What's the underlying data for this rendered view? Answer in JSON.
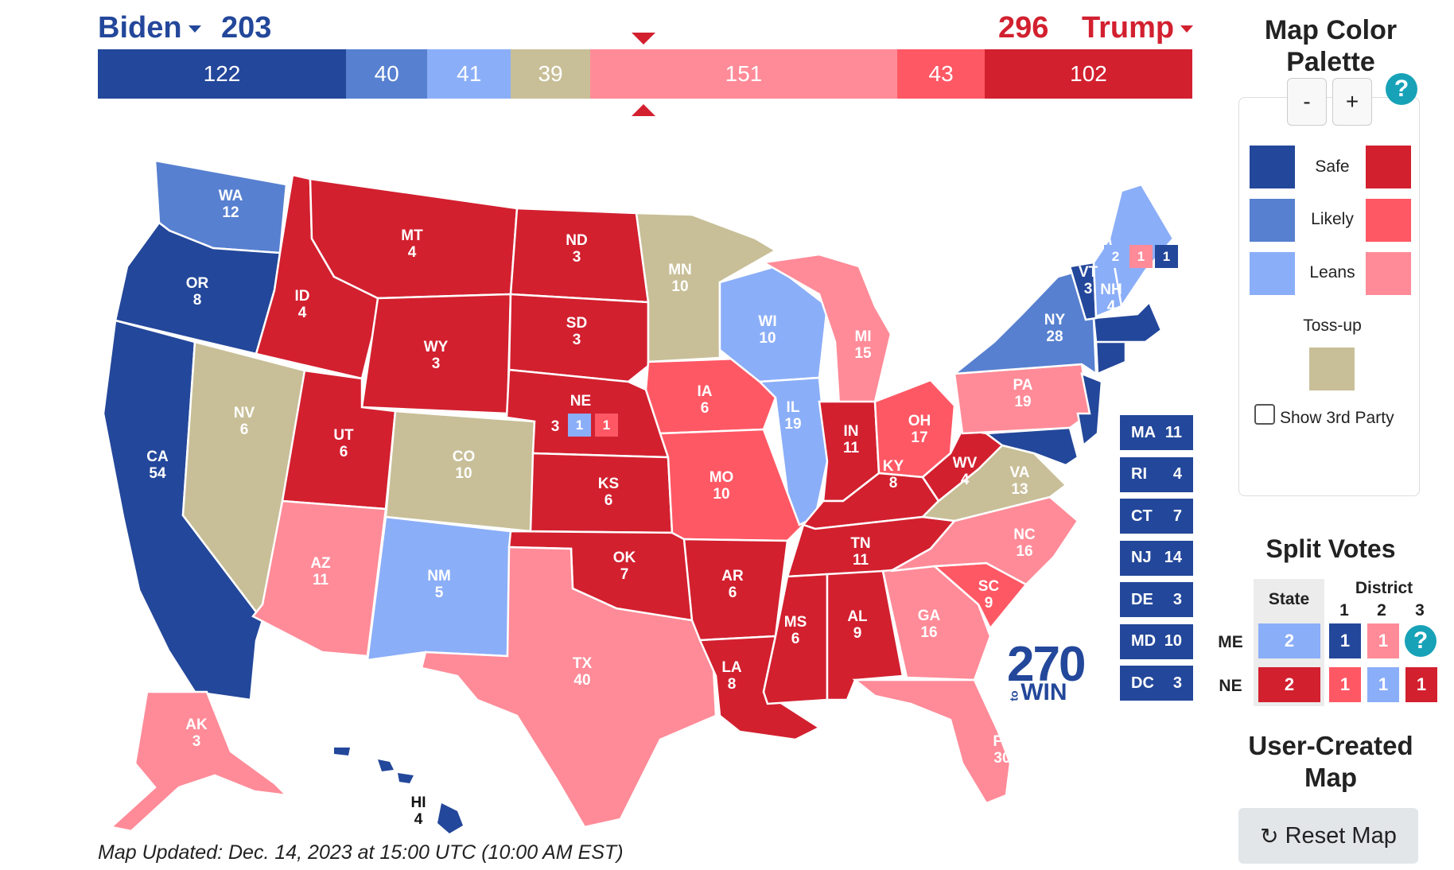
{
  "header": {
    "dem_name": "Biden",
    "dem_total": "203",
    "rep_total": "296",
    "rep_name": "Trump"
  },
  "bar": {
    "segments": [
      {
        "label": "122",
        "value": 122,
        "color": "#23479a"
      },
      {
        "label": "40",
        "value": 40,
        "color": "#5780d0"
      },
      {
        "label": "41",
        "value": 41,
        "color": "#8baef8"
      },
      {
        "label": "39",
        "value": 39,
        "color": "#c8bf98"
      },
      {
        "label": "151",
        "value": 151,
        "color": "#ff8b98"
      },
      {
        "label": "43",
        "value": 43,
        "color": "#ff5865"
      },
      {
        "label": "102",
        "value": 102,
        "color": "#d2202f"
      }
    ]
  },
  "colors": {
    "safe_dem": "#23479a",
    "likely_dem": "#5780d0",
    "leans_dem": "#8baef8",
    "tossup": "#c8bf98",
    "leans_rep": "#ff8b98",
    "likely_rep": "#ff5865",
    "safe_rep": "#d2202f"
  },
  "states": {
    "WA": {
      "abbr": "WA",
      "ev": "12",
      "rating": "likely_dem"
    },
    "OR": {
      "abbr": "OR",
      "ev": "8",
      "rating": "safe_dem"
    },
    "CA": {
      "abbr": "CA",
      "ev": "54",
      "rating": "safe_dem"
    },
    "NV": {
      "abbr": "NV",
      "ev": "6",
      "rating": "tossup"
    },
    "ID": {
      "abbr": "ID",
      "ev": "4",
      "rating": "safe_rep"
    },
    "MT": {
      "abbr": "MT",
      "ev": "4",
      "rating": "safe_rep"
    },
    "WY": {
      "abbr": "WY",
      "ev": "3",
      "rating": "safe_rep"
    },
    "UT": {
      "abbr": "UT",
      "ev": "6",
      "rating": "safe_rep"
    },
    "AZ": {
      "abbr": "AZ",
      "ev": "11",
      "rating": "leans_rep"
    },
    "CO": {
      "abbr": "CO",
      "ev": "10",
      "rating": "tossup"
    },
    "NM": {
      "abbr": "NM",
      "ev": "5",
      "rating": "leans_dem"
    },
    "ND": {
      "abbr": "ND",
      "ev": "3",
      "rating": "safe_rep"
    },
    "SD": {
      "abbr": "SD",
      "ev": "3",
      "rating": "safe_rep"
    },
    "NE": {
      "abbr": "NE",
      "ev": "3",
      "rating": "safe_rep"
    },
    "KS": {
      "abbr": "KS",
      "ev": "6",
      "rating": "safe_rep"
    },
    "OK": {
      "abbr": "OK",
      "ev": "7",
      "rating": "safe_rep"
    },
    "TX": {
      "abbr": "TX",
      "ev": "40",
      "rating": "leans_rep"
    },
    "MN": {
      "abbr": "MN",
      "ev": "10",
      "rating": "tossup"
    },
    "IA": {
      "abbr": "IA",
      "ev": "6",
      "rating": "likely_rep"
    },
    "MO": {
      "abbr": "MO",
      "ev": "10",
      "rating": "likely_rep"
    },
    "AR": {
      "abbr": "AR",
      "ev": "6",
      "rating": "safe_rep"
    },
    "LA": {
      "abbr": "LA",
      "ev": "8",
      "rating": "safe_rep"
    },
    "WI": {
      "abbr": "WI",
      "ev": "10",
      "rating": "leans_dem"
    },
    "IL": {
      "abbr": "IL",
      "ev": "19",
      "rating": "leans_dem"
    },
    "MI": {
      "abbr": "MI",
      "ev": "15",
      "rating": "leans_rep"
    },
    "IN": {
      "abbr": "IN",
      "ev": "11",
      "rating": "safe_rep"
    },
    "OH": {
      "abbr": "OH",
      "ev": "17",
      "rating": "likely_rep"
    },
    "KY": {
      "abbr": "KY",
      "ev": "8",
      "rating": "safe_rep"
    },
    "TN": {
      "abbr": "TN",
      "ev": "11",
      "rating": "safe_rep"
    },
    "MS": {
      "abbr": "MS",
      "ev": "6",
      "rating": "safe_rep"
    },
    "AL": {
      "abbr": "AL",
      "ev": "9",
      "rating": "safe_rep"
    },
    "GA": {
      "abbr": "GA",
      "ev": "16",
      "rating": "leans_rep"
    },
    "FL": {
      "abbr": "FL",
      "ev": "30",
      "rating": "leans_rep"
    },
    "SC": {
      "abbr": "SC",
      "ev": "9",
      "rating": "likely_rep"
    },
    "NC": {
      "abbr": "NC",
      "ev": "16",
      "rating": "leans_rep"
    },
    "VA": {
      "abbr": "VA",
      "ev": "13",
      "rating": "tossup"
    },
    "WV": {
      "abbr": "WV",
      "ev": "4",
      "rating": "safe_rep"
    },
    "PA": {
      "abbr": "PA",
      "ev": "19",
      "rating": "leans_rep"
    },
    "NY": {
      "abbr": "NY",
      "ev": "28",
      "rating": "likely_dem"
    },
    "VT": {
      "abbr": "VT",
      "ev": "3",
      "rating": "safe_dem"
    },
    "NH": {
      "abbr": "NH",
      "ev": "4",
      "rating": "leans_dem"
    },
    "ME": {
      "abbr": "ME",
      "rating": "leans_dem"
    },
    "AK": {
      "abbr": "AK",
      "ev": "3",
      "rating": "leans_rep"
    },
    "HI": {
      "abbr": "HI",
      "ev": "4",
      "rating": "safe_dem"
    }
  },
  "me_districts": [
    "2",
    "1",
    "1"
  ],
  "ne_districts": [
    "1",
    "1"
  ],
  "small_states": [
    {
      "abbr": "MA",
      "ev": "11"
    },
    {
      "abbr": "RI",
      "ev": "4"
    },
    {
      "abbr": "CT",
      "ev": "7"
    },
    {
      "abbr": "NJ",
      "ev": "14"
    },
    {
      "abbr": "DE",
      "ev": "3"
    },
    {
      "abbr": "MD",
      "ev": "10"
    },
    {
      "abbr": "DC",
      "ev": "3"
    }
  ],
  "logo": {
    "number": "270",
    "to": "to",
    "win": "WIN"
  },
  "updated": "Map Updated: Dec. 14, 2023 at 15:00 UTC (10:00 AM EST)",
  "panel": {
    "palette_title_1": "Map Color",
    "palette_title_2": "Palette",
    "minus": "-",
    "plus": "+",
    "help": "?",
    "safe": "Safe",
    "likely": "Likely",
    "leans": "Leans",
    "tossup": "Toss-up",
    "third_party": "Show 3rd Party",
    "split_title": "Split Votes",
    "state_header": "State",
    "district_header": "District",
    "districts": [
      "1",
      "2",
      "3"
    ],
    "me_label": "ME",
    "ne_label": "NE",
    "me_row": [
      "2",
      "1",
      "1"
    ],
    "ne_row": [
      "2",
      "1",
      "1",
      "1"
    ],
    "user_title_1": "User-Created",
    "user_title_2": "Map",
    "reset_label": "Reset Map"
  }
}
